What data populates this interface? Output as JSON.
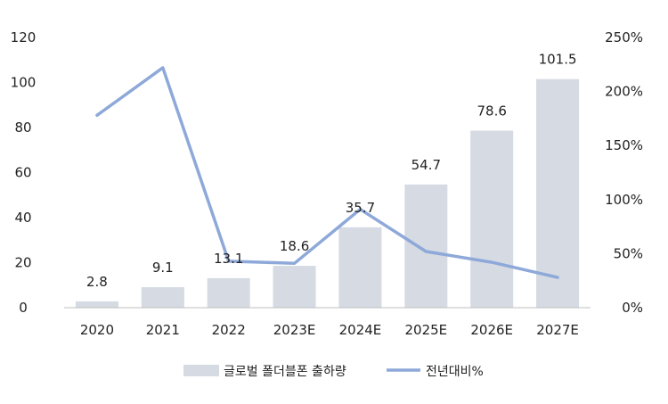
{
  "chart_data": {
    "type": "bar",
    "categories": [
      "2020",
      "2021",
      "2022",
      "2023E",
      "2024E",
      "2025E",
      "2026E",
      "2027E"
    ],
    "series": [
      {
        "name": "글로벌 폴더블폰 출하량",
        "type": "bar",
        "axis": "left",
        "color": "#d5dae3",
        "values": [
          2.8,
          9.1,
          13.1,
          18.6,
          35.7,
          54.7,
          78.6,
          101.5
        ],
        "labels": [
          "2.8",
          "9.1",
          "13.1",
          "18.6",
          "35.7",
          "54.7",
          "78.6",
          "101.5"
        ]
      },
      {
        "name": "전년대비%",
        "type": "line",
        "axis": "right",
        "color": "#8ea9d9",
        "values": [
          178,
          222,
          43,
          41,
          91,
          52,
          42,
          28
        ]
      }
    ],
    "y_left": {
      "ylim": [
        0,
        120
      ],
      "ticks": [
        0,
        20,
        40,
        60,
        80,
        100,
        120
      ],
      "tick_labels": [
        "0",
        "20",
        "40",
        "60",
        "80",
        "100",
        "120"
      ]
    },
    "y_right": {
      "ylim": [
        0,
        250
      ],
      "ticks": [
        0,
        50,
        100,
        150,
        200,
        250
      ],
      "tick_labels": [
        "0%",
        "50%",
        "100%",
        "150%",
        "200%",
        "250%"
      ]
    },
    "grid": false,
    "legend": {
      "position": "bottom"
    },
    "title": "",
    "xlabel": "",
    "ylabel": ""
  }
}
